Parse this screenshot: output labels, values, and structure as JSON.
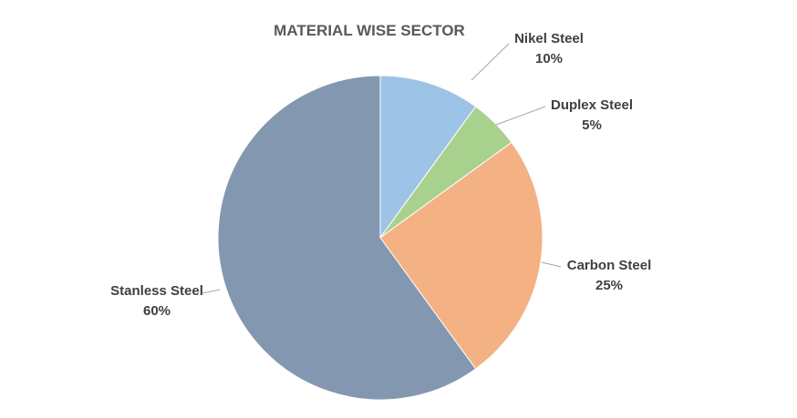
{
  "chart_data": {
    "type": "pie",
    "title": "MATERIAL WISE SECTOR",
    "categories": [
      "Nikel Steel",
      "Duplex Steel",
      "Carbon Steel",
      "Stanless Steel"
    ],
    "values": [
      10,
      5,
      25,
      60
    ],
    "value_labels": [
      "10%",
      "5%",
      "25%",
      "60%"
    ],
    "colors": [
      "#9dc3e6",
      "#a9d18e",
      "#f4b183",
      "#8497b0"
    ],
    "legend": "none",
    "start_angle": "12 o'clock",
    "direction": "clockwise",
    "label_text_color": "#404040",
    "title_color": "#595959",
    "leader_line_color": "#a6a6a6"
  }
}
